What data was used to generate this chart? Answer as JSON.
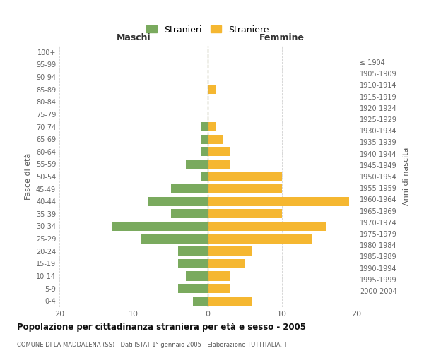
{
  "age_groups": [
    "100+",
    "95-99",
    "90-94",
    "85-89",
    "80-84",
    "75-79",
    "70-74",
    "65-69",
    "60-64",
    "55-59",
    "50-54",
    "45-49",
    "40-44",
    "35-39",
    "30-34",
    "25-29",
    "20-24",
    "15-19",
    "10-14",
    "5-9",
    "0-4"
  ],
  "birth_years": [
    "≤ 1904",
    "1905-1909",
    "1910-1914",
    "1915-1919",
    "1920-1924",
    "1925-1929",
    "1930-1934",
    "1935-1939",
    "1940-1944",
    "1945-1949",
    "1950-1954",
    "1955-1959",
    "1960-1964",
    "1965-1969",
    "1970-1974",
    "1975-1979",
    "1980-1984",
    "1985-1989",
    "1990-1994",
    "1995-1999",
    "2000-2004"
  ],
  "maschi": [
    0,
    0,
    0,
    0,
    0,
    0,
    1,
    1,
    1,
    3,
    1,
    5,
    8,
    5,
    13,
    9,
    4,
    4,
    3,
    4,
    2
  ],
  "femmine": [
    0,
    0,
    0,
    1,
    0,
    0,
    1,
    2,
    3,
    3,
    10,
    10,
    19,
    10,
    16,
    14,
    6,
    5,
    3,
    3,
    6
  ],
  "color_maschi": "#7aaa5e",
  "color_femmine": "#f5b731",
  "title": "Popolazione per cittadinanza straniera per età e sesso - 2005",
  "subtitle": "COMUNE DI LA MADDALENA (SS) - Dati ISTAT 1° gennaio 2005 - Elaborazione TUTTITALIA.IT",
  "xlabel_left": "Maschi",
  "xlabel_right": "Femmine",
  "ylabel_left": "Fasce di età",
  "ylabel_right": "Anni di nascita",
  "legend_maschi": "Stranieri",
  "legend_femmine": "Straniere",
  "xlim": 20,
  "background_color": "#ffffff",
  "grid_color": "#cccccc"
}
